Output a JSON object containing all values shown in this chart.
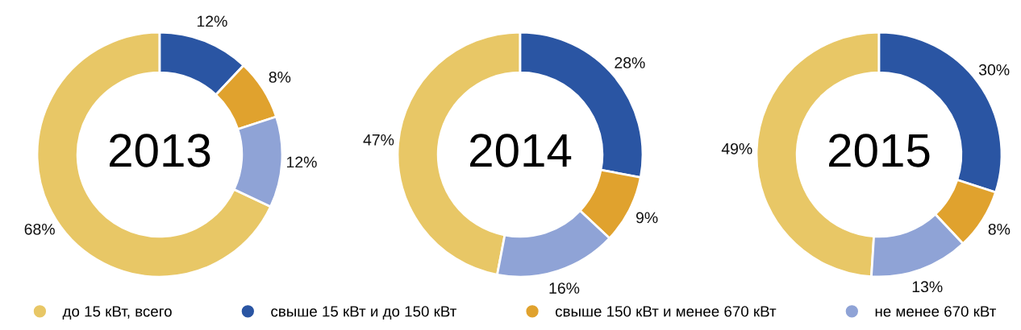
{
  "chart_data": [
    {
      "type": "donut",
      "title": "2013",
      "categories": [
        "до 15 кВт, всего",
        "свыше 15 кВт и до 150 кВт",
        "свыше 150 кВт и менее 670 кВт",
        "не менее 670 кВт"
      ],
      "values": [
        68,
        12,
        8,
        12
      ],
      "value_labels": [
        "68%",
        "12%",
        "8%",
        "12%"
      ],
      "colors": [
        "#e8c766",
        "#2a55a3",
        "#e0a22e",
        "#8fa3d6"
      ],
      "legend": "bottom"
    },
    {
      "type": "donut",
      "title": "2014",
      "values": [
        47,
        28,
        9,
        16
      ],
      "value_labels": [
        "47%",
        "28%",
        "9%",
        "16%"
      ],
      "colors": [
        "#e8c766",
        "#2a55a3",
        "#e0a22e",
        "#8fa3d6"
      ]
    },
    {
      "type": "donut",
      "title": "2015",
      "values": [
        49,
        30,
        8,
        13
      ],
      "value_labels": [
        "49%",
        "30%",
        "8%",
        "13%"
      ],
      "colors": [
        "#e8c766",
        "#2a55a3",
        "#e0a22e",
        "#8fa3d6"
      ]
    }
  ]
}
